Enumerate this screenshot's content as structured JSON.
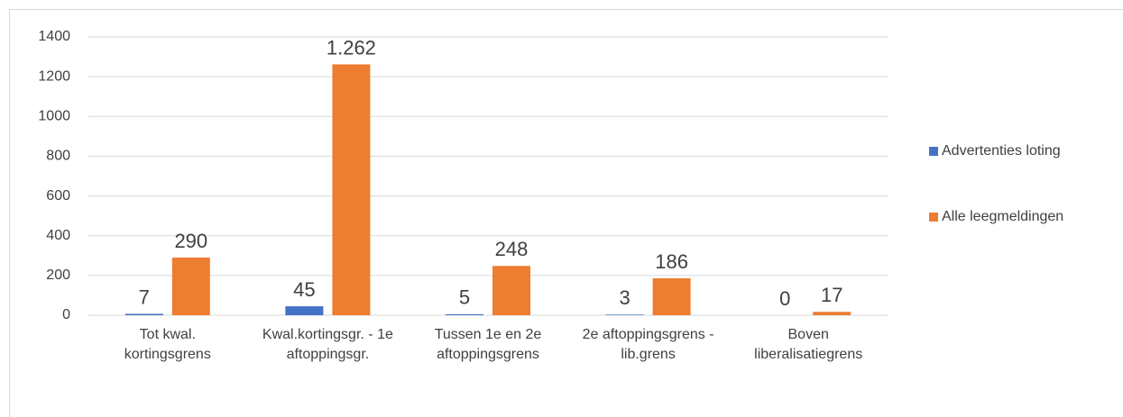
{
  "chart_data": {
    "type": "bar",
    "categories": [
      "Tot kwal. kortingsgrens",
      "Kwal.kortingsgr. - 1e aftoppingsgr.",
      "Tussen 1e en 2e aftoppingsgrens",
      "2e aftoppingsgrens - lib.grens",
      "Boven liberalisatiegrens"
    ],
    "series": [
      {
        "name": "Advertenties loting",
        "color": "#4472c4",
        "values": [
          7,
          45,
          5,
          3,
          0
        ]
      },
      {
        "name": "Alle leegmeldingen",
        "color": "#ed7d31",
        "values": [
          290,
          1262,
          248,
          186,
          17
        ],
        "value_labels": [
          "290",
          "1.262",
          "248",
          "186",
          "17"
        ]
      }
    ],
    "ylim": [
      0,
      1400
    ],
    "yticks": [
      0,
      200,
      400,
      600,
      800,
      1000,
      1200,
      1400
    ],
    "grid": true,
    "legend": "right"
  }
}
